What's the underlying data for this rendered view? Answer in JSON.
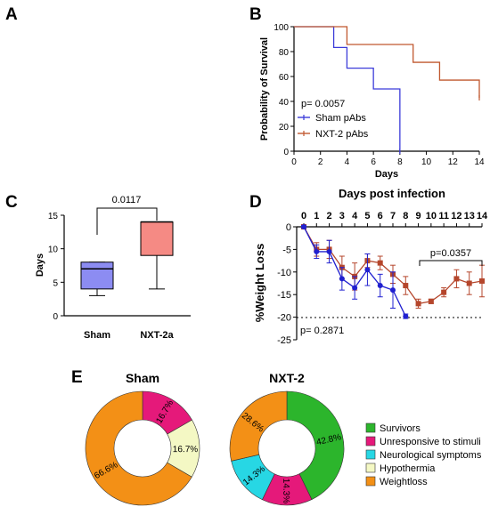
{
  "panels": {
    "A": "A",
    "B": "B",
    "C": "C",
    "D": "D",
    "E": "E"
  },
  "chart_data": [
    {
      "panel": "B",
      "type": "line",
      "step": true,
      "xlabel": "Days",
      "ylabel": "Probability of Survival",
      "xlim": [
        0,
        14
      ],
      "ylim": [
        0,
        100
      ],
      "x_ticks": [
        0,
        2,
        4,
        6,
        8,
        10,
        12,
        14
      ],
      "y_ticks": [
        0,
        20,
        40,
        60,
        80,
        100
      ],
      "annotation": "p= 0.0057",
      "legend": "bottom-left",
      "series": [
        {
          "name": "Sham pAbs",
          "color": "#3b3bd9",
          "x": [
            0,
            3,
            3,
            4,
            4,
            6,
            6,
            8,
            8
          ],
          "y": [
            100,
            100,
            83.3,
            83.3,
            66.7,
            66.7,
            50,
            50,
            0
          ]
        },
        {
          "name": "NXT-2 pAbs",
          "color": "#c0582f",
          "x": [
            0,
            3,
            3,
            4,
            4,
            9,
            9,
            11,
            11,
            14,
            14
          ],
          "y": [
            100,
            100,
            100,
            100,
            85.7,
            85.7,
            71.4,
            71.4,
            57.1,
            57.1,
            42.9
          ]
        }
      ]
    },
    {
      "panel": "C",
      "type": "box",
      "ylabel": "Days",
      "ylim": [
        0,
        15
      ],
      "y_ticks": [
        0,
        5,
        10,
        15
      ],
      "categories": [
        "Sham",
        "NXT-2a"
      ],
      "boxes": [
        {
          "min": 3,
          "q1": 4,
          "median": 7,
          "q3": 8,
          "max": 8,
          "color": "#8c8cf2"
        },
        {
          "min": 4,
          "q1": 9,
          "median": 14,
          "q3": 14,
          "max": 14,
          "color": "#f58a84"
        }
      ],
      "bracket_label": "0.0117"
    },
    {
      "panel": "D",
      "type": "line",
      "title": "Days post infection",
      "ylabel": "%Weight Loss",
      "xlim": [
        0,
        14
      ],
      "ylim": [
        -25,
        0
      ],
      "x_ticks": [
        0,
        1,
        2,
        3,
        4,
        5,
        6,
        7,
        8,
        9,
        10,
        11,
        12,
        13,
        14
      ],
      "y_ticks": [
        0,
        -5,
        -10,
        -15,
        -20,
        -25
      ],
      "threshold": -20,
      "annotations": [
        "p= 0.2871",
        "p=0.0357"
      ],
      "series": [
        {
          "name": "Sham",
          "color": "#2020d0",
          "x": [
            0,
            1,
            2,
            3,
            4,
            5,
            6,
            7,
            8
          ],
          "y": [
            0,
            -5.5,
            -5.5,
            -11.5,
            -13.5,
            -9.5,
            -13,
            -14,
            -19.8
          ],
          "err": [
            0.3,
            1.5,
            2.5,
            2.5,
            2.5,
            3.5,
            2.5,
            4,
            0.5
          ]
        },
        {
          "name": "NXT-2",
          "color": "#b5462c",
          "x": [
            0,
            1,
            2,
            3,
            4,
            5,
            6,
            7,
            8,
            9,
            10,
            11,
            12,
            13,
            14
          ],
          "y": [
            0,
            -5,
            -5,
            -9,
            -11,
            -7.5,
            -8,
            -10.5,
            -13,
            -17,
            -16.5,
            -14.5,
            -11.5,
            -12.5,
            -12
          ],
          "err": [
            0.3,
            1.5,
            2,
            2.5,
            3,
            1.5,
            1.5,
            2,
            2,
            1,
            0.5,
            1,
            2,
            2.5,
            3.5
          ]
        }
      ]
    },
    {
      "panel": "E",
      "type": "pie",
      "donut": true,
      "charts": [
        {
          "title": "Sham",
          "slices": [
            {
              "category": "Unresponsive to stimuli",
              "value": 16.7,
              "label": "16.7%"
            },
            {
              "category": "Hypothermia",
              "value": 16.7,
              "label": "16.7%"
            },
            {
              "category": "Weightloss",
              "value": 66.6,
              "label": "66.6%"
            }
          ]
        },
        {
          "title": "NXT-2",
          "slices": [
            {
              "category": "Survivors",
              "value": 42.8,
              "label": "42.8%"
            },
            {
              "category": "Unresponsive to stimuli",
              "value": 14.3,
              "label": "14.3%"
            },
            {
              "category": "Neurological symptoms",
              "value": 14.3,
              "label": "14.3%"
            },
            {
              "category": "Weightloss",
              "value": 28.6,
              "label": "28.6%"
            }
          ]
        }
      ],
      "legend": [
        {
          "label": "Survivors",
          "color": "#2cb52c"
        },
        {
          "label": "Unresponsive to stimuli",
          "color": "#e5197a"
        },
        {
          "label": "Neurological symptoms",
          "color": "#27d7e4"
        },
        {
          "label": "Hypothermia",
          "color": "#f4f8c4"
        },
        {
          "label": "Weightloss",
          "color": "#f39016"
        }
      ]
    }
  ]
}
